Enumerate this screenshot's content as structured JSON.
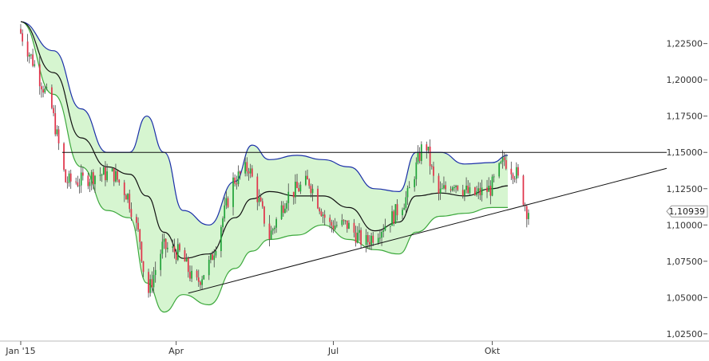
{
  "chart_data": {
    "type": "candlestick",
    "instrument_note": "",
    "x_axis": {
      "ticks": [
        {
          "label": "Jan '15",
          "date": "2015-01-01"
        },
        {
          "label": "Apr",
          "date": "2015-04-01"
        },
        {
          "label": "Jul",
          "date": "2015-07-01"
        },
        {
          "label": "Okt",
          "date": "2015-10-01"
        }
      ],
      "range": [
        "2014-12-20",
        "2016-01-10"
      ]
    },
    "y_axis": {
      "range": [
        1.02,
        1.255
      ],
      "ticks": [
        {
          "label": "1,02500",
          "value": 1.025
        },
        {
          "label": "1,05000",
          "value": 1.05
        },
        {
          "label": "1,07500",
          "value": 1.075
        },
        {
          "label": "1,10000",
          "value": 1.1
        },
        {
          "label": "1,12500",
          "value": 1.125
        },
        {
          "label": "1,15000",
          "value": 1.15
        },
        {
          "label": "1,17500",
          "value": 1.175
        },
        {
          "label": "1,20000",
          "value": 1.2
        },
        {
          "label": "1,22500",
          "value": 1.225
        }
      ],
      "position": "right"
    },
    "last_price": {
      "label": "1,10939",
      "value": 1.10939
    },
    "colors": {
      "up": "#22a33a",
      "down": "#e0334a",
      "wick": "#444444",
      "band_fill": "#d6f5d0",
      "upper_band": "#1a2fa8",
      "lower_band": "#3ca83c",
      "middle_band": "#111111",
      "trendline": "#111111"
    },
    "bollinger_bands": {
      "upper": [
        [
          "2015-01-01",
          1.24
        ],
        [
          "2015-01-20",
          1.22
        ],
        [
          "2015-02-05",
          1.18
        ],
        [
          "2015-02-20",
          1.15
        ],
        [
          "2015-03-05",
          1.15
        ],
        [
          "2015-03-15",
          1.175
        ],
        [
          "2015-03-25",
          1.15
        ],
        [
          "2015-04-05",
          1.11
        ],
        [
          "2015-04-20",
          1.1
        ],
        [
          "2015-05-05",
          1.13
        ],
        [
          "2015-05-15",
          1.155
        ],
        [
          "2015-05-25",
          1.145
        ],
        [
          "2015-06-10",
          1.148
        ],
        [
          "2015-06-25",
          1.145
        ],
        [
          "2015-07-10",
          1.14
        ],
        [
          "2015-07-25",
          1.125
        ],
        [
          "2015-08-08",
          1.123
        ],
        [
          "2015-08-18",
          1.15
        ],
        [
          "2015-09-01",
          1.15
        ],
        [
          "2015-09-15",
          1.142
        ],
        [
          "2015-10-01",
          1.143
        ],
        [
          "2015-10-10",
          1.148
        ]
      ],
      "middle": [
        [
          "2015-01-01",
          1.24
        ],
        [
          "2015-01-20",
          1.205
        ],
        [
          "2015-02-05",
          1.16
        ],
        [
          "2015-02-20",
          1.14
        ],
        [
          "2015-03-05",
          1.135
        ],
        [
          "2015-03-15",
          1.12
        ],
        [
          "2015-03-25",
          1.095
        ],
        [
          "2015-04-05",
          1.077
        ],
        [
          "2015-04-20",
          1.08
        ],
        [
          "2015-05-05",
          1.105
        ],
        [
          "2015-05-15",
          1.118
        ],
        [
          "2015-05-25",
          1.123
        ],
        [
          "2015-06-10",
          1.12
        ],
        [
          "2015-06-25",
          1.12
        ],
        [
          "2015-07-10",
          1.112
        ],
        [
          "2015-07-25",
          1.096
        ],
        [
          "2015-08-08",
          1.102
        ],
        [
          "2015-08-18",
          1.12
        ],
        [
          "2015-09-01",
          1.122
        ],
        [
          "2015-09-15",
          1.12
        ],
        [
          "2015-10-01",
          1.125
        ],
        [
          "2015-10-10",
          1.127
        ]
      ],
      "lower": [
        [
          "2015-01-01",
          1.24
        ],
        [
          "2015-01-20",
          1.19
        ],
        [
          "2015-02-05",
          1.14
        ],
        [
          "2015-02-20",
          1.11
        ],
        [
          "2015-03-05",
          1.105
        ],
        [
          "2015-03-15",
          1.06
        ],
        [
          "2015-03-25",
          1.04
        ],
        [
          "2015-04-05",
          1.052
        ],
        [
          "2015-04-20",
          1.045
        ],
        [
          "2015-05-05",
          1.07
        ],
        [
          "2015-05-15",
          1.082
        ],
        [
          "2015-05-25",
          1.09
        ],
        [
          "2015-06-10",
          1.093
        ],
        [
          "2015-06-25",
          1.1
        ],
        [
          "2015-07-10",
          1.09
        ],
        [
          "2015-07-25",
          1.083
        ],
        [
          "2015-08-08",
          1.08
        ],
        [
          "2015-08-18",
          1.095
        ],
        [
          "2015-09-01",
          1.106
        ],
        [
          "2015-09-15",
          1.108
        ],
        [
          "2015-10-01",
          1.112
        ],
        [
          "2015-10-10",
          1.112
        ]
      ]
    },
    "price_path": [
      [
        "2015-01-01",
        1.235
      ],
      [
        "2015-01-10",
        1.21
      ],
      [
        "2015-01-20",
        1.18
      ],
      [
        "2015-01-28",
        1.13
      ],
      [
        "2015-02-05",
        1.13
      ],
      [
        "2015-02-15",
        1.135
      ],
      [
        "2015-02-25",
        1.135
      ],
      [
        "2015-03-05",
        1.12
      ],
      [
        "2015-03-12",
        1.09
      ],
      [
        "2015-03-16",
        1.05
      ],
      [
        "2015-03-25",
        1.085
      ],
      [
        "2015-04-05",
        1.08
      ],
      [
        "2015-04-13",
        1.058
      ],
      [
        "2015-04-22",
        1.075
      ],
      [
        "2015-05-05",
        1.13
      ],
      [
        "2015-05-14",
        1.14
      ],
      [
        "2015-05-26",
        1.092
      ],
      [
        "2015-06-05",
        1.12
      ],
      [
        "2015-06-18",
        1.13
      ],
      [
        "2015-06-29",
        1.1
      ],
      [
        "2015-07-10",
        1.1
      ],
      [
        "2015-07-20",
        1.087
      ],
      [
        "2015-08-05",
        1.105
      ],
      [
        "2015-08-14",
        1.12
      ],
      [
        "2015-08-24",
        1.16
      ],
      [
        "2015-08-31",
        1.12
      ],
      [
        "2015-09-10",
        1.13
      ],
      [
        "2015-09-20",
        1.12
      ],
      [
        "2015-10-01",
        1.125
      ],
      [
        "2015-10-09",
        1.145
      ],
      [
        "2015-10-16",
        1.135
      ],
      [
        "2015-10-22",
        1.11
      ]
    ],
    "candle_spacing_days": 1,
    "annotations": [
      {
        "type": "horizontal_line",
        "value": 1.15,
        "from": "2015-01-25",
        "to": "2016-01-10"
      },
      {
        "type": "trendline",
        "from": [
          "2015-04-08",
          1.053
        ],
        "to": [
          "2016-01-10",
          1.139
        ]
      }
    ],
    "grid": false
  }
}
